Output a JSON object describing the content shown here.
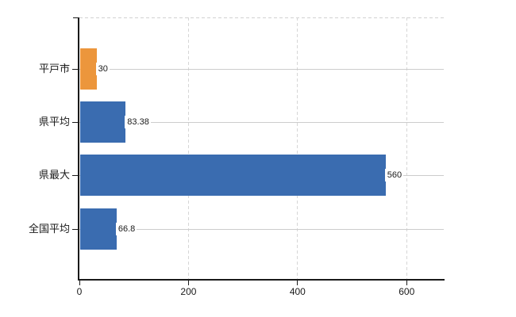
{
  "chart_data": {
    "type": "bar",
    "orientation": "horizontal",
    "categories": [
      "平戸市",
      "県平均",
      "県最大",
      "全国平均"
    ],
    "values": [
      30,
      83.38,
      560,
      66.8
    ],
    "value_labels": [
      "30",
      "83.38",
      "560",
      "66.8"
    ],
    "bar_colors": [
      "#ec963c",
      "#3a6cb0",
      "#3a6cb0",
      "#3a6cb0"
    ],
    "x_ticks": [
      0,
      200,
      400,
      600
    ],
    "x_tick_labels": [
      "0",
      "200",
      "400",
      "600"
    ],
    "xlim": [
      0,
      668
    ],
    "title": "",
    "xlabel": "",
    "ylabel": "",
    "legend": null,
    "grid": {
      "vertical": "dashed",
      "horizontal": "category-center-lines",
      "top_border": "dashed"
    },
    "colors": {
      "background": "#ffffff",
      "axis": "#1a1a1a",
      "tick_label": "#1a1a1a",
      "value_label": "#1a1a1a",
      "gridline_dashed": "#d6d6d6",
      "gridline_solid": "#cccccc",
      "bar_highlight": "#ec963c",
      "bar_default": "#3a6cb0"
    }
  }
}
